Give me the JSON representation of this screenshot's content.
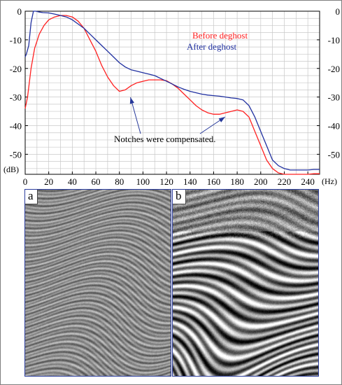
{
  "chart_data": {
    "type": "line",
    "xlabel_unit": "(Hz)",
    "ylabel_unit": "(dB)",
    "xlim": [
      0,
      250
    ],
    "ylim": [
      -57,
      0
    ],
    "x_ticks": [
      "0",
      "20",
      "40",
      "60",
      "80",
      "100",
      "120",
      "140",
      "160",
      "180",
      "200",
      "220",
      "240"
    ],
    "y_ticks": [
      "0",
      "-10",
      "-20",
      "-30",
      "-40",
      "-50"
    ],
    "grid": true,
    "legend_position": "top-right",
    "series": [
      {
        "name": "Before deghost",
        "color": "#ff2020",
        "x": [
          0,
          2,
          5,
          8,
          12,
          16,
          20,
          25,
          30,
          35,
          40,
          45,
          50,
          55,
          60,
          65,
          70,
          75,
          80,
          85,
          90,
          95,
          100,
          105,
          110,
          115,
          120,
          125,
          130,
          135,
          140,
          145,
          150,
          155,
          160,
          165,
          170,
          175,
          180,
          185,
          190,
          195,
          200,
          205,
          210,
          215,
          220,
          225,
          230,
          235,
          240,
          245,
          250
        ],
        "y": [
          -34,
          -30,
          -20,
          -13,
          -8,
          -5,
          -3,
          -2,
          -1.5,
          -1.5,
          -2,
          -3.5,
          -6,
          -10,
          -14,
          -19,
          -23,
          -26,
          -28,
          -27.5,
          -26,
          -25,
          -24.5,
          -24,
          -24,
          -24,
          -24.3,
          -25.5,
          -27,
          -29,
          -31,
          -33,
          -34.5,
          -35.5,
          -36,
          -36,
          -35.5,
          -35,
          -34.5,
          -35,
          -37,
          -42,
          -47,
          -52,
          -55,
          -56.5,
          -57,
          -57,
          -57,
          -57,
          -57,
          -56.8,
          -56.8
        ]
      },
      {
        "name": "After deghost",
        "color": "#2030a0",
        "x": [
          0,
          1,
          3,
          5,
          7,
          9,
          12,
          15,
          20,
          25,
          30,
          35,
          40,
          45,
          50,
          55,
          60,
          65,
          70,
          75,
          80,
          85,
          90,
          95,
          100,
          105,
          110,
          115,
          120,
          125,
          130,
          135,
          140,
          145,
          150,
          155,
          160,
          165,
          170,
          175,
          180,
          185,
          190,
          195,
          200,
          205,
          210,
          215,
          220,
          225,
          230,
          235,
          240,
          245,
          250
        ],
        "y": [
          -16,
          -15,
          -12,
          -4,
          0,
          0,
          -0.3,
          -0.5,
          -0.6,
          -1,
          -1.5,
          -2,
          -3,
          -4.5,
          -6,
          -8,
          -10,
          -12,
          -14,
          -16,
          -18,
          -19.5,
          -20.5,
          -21,
          -21.5,
          -22,
          -22.5,
          -23.5,
          -24.5,
          -25.5,
          -26.5,
          -27.3,
          -28,
          -28.5,
          -29,
          -29.3,
          -29.5,
          -29.7,
          -30,
          -30.3,
          -30.5,
          -31,
          -33,
          -37,
          -42,
          -47,
          -52,
          -54,
          -55,
          -55.5,
          -55.5,
          -55.5,
          -55.5,
          -55.3,
          -55.3
        ]
      }
    ],
    "annotations": [
      {
        "text": "Notches were compensated.",
        "targets_hz": [
          87,
          165
        ]
      }
    ]
  },
  "panels": [
    {
      "label": "a"
    },
    {
      "label": "b"
    }
  ],
  "colors": {
    "axis": "#000000",
    "grid": "#c8c8c8",
    "arrow": "#26389a",
    "panel_border": "#2c3e9e"
  }
}
